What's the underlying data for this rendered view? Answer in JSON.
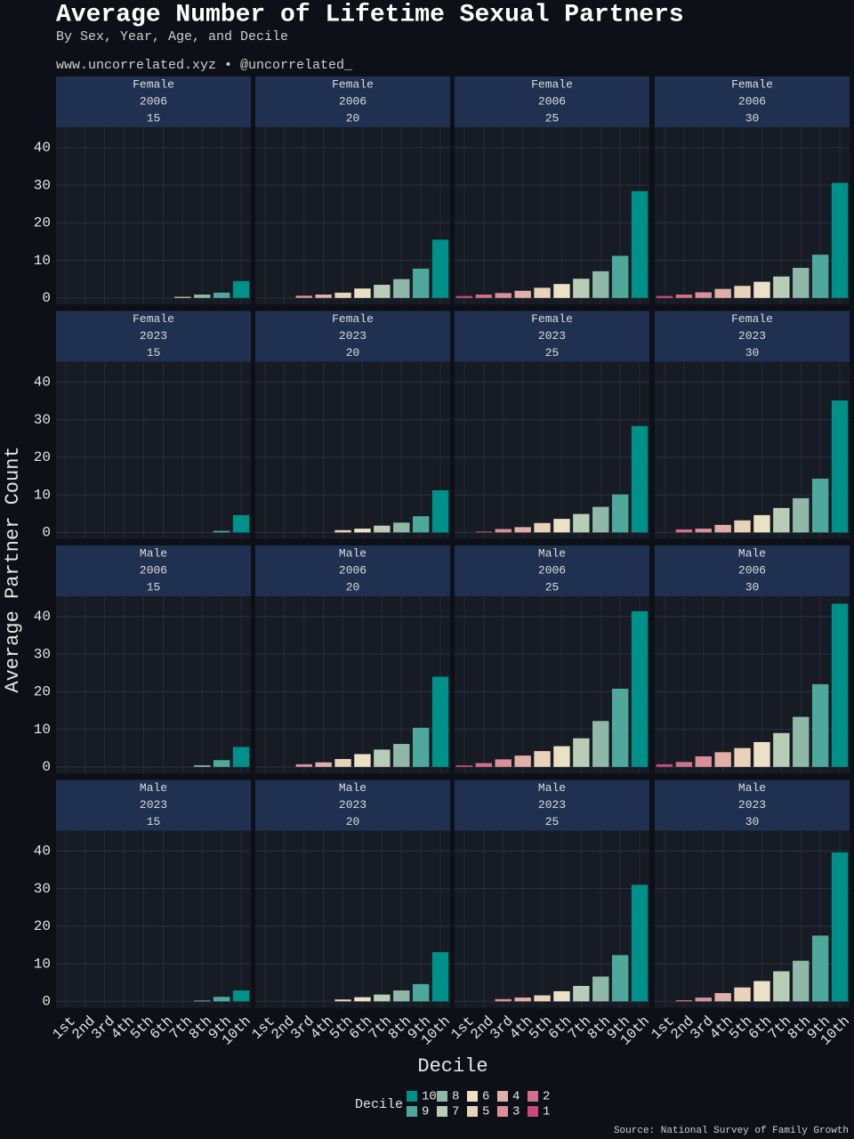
{
  "title": "Average Number of Lifetime Sexual Partners",
  "subtitle": "By Sex, Year, Age, and Decile",
  "credit": "www.uncorrelated.xyz • @uncorrelated_",
  "source": "Source: National Survey of Family Growth",
  "y_label": "Average Partner Count",
  "x_label": "Decile",
  "categories": [
    "1st",
    "2nd",
    "3rd",
    "4th",
    "5th",
    "6th",
    "7th",
    "8th",
    "9th",
    "10th"
  ],
  "colors": [
    "#c94a78",
    "#d0708a",
    "#d9909b",
    "#e0b0a8",
    "#e8d2b8",
    "#ebe2c6",
    "#b8cdb5",
    "#8fb8a8",
    "#4fa89c",
    "#00908a"
  ],
  "legend": {
    "title": "Decile",
    "names": [
      "1",
      "2",
      "3",
      "4",
      "5",
      "6",
      "7",
      "8",
      "9",
      "10"
    ]
  },
  "ylim": [
    -1.7,
    45.4
  ],
  "yticks": [
    0,
    10,
    20,
    30,
    40
  ],
  "grid": true,
  "chart_data": [
    {
      "type": "bar",
      "sex": "Female",
      "year": "2006",
      "age": "15",
      "values": [
        0,
        0,
        0,
        0,
        0,
        0,
        0.3,
        0.9,
        1.4,
        4.5
      ]
    },
    {
      "type": "bar",
      "sex": "Female",
      "year": "2006",
      "age": "20",
      "values": [
        0,
        0,
        0.6,
        0.9,
        1.4,
        2.5,
        3.5,
        5.0,
        7.8,
        15.5
      ]
    },
    {
      "type": "bar",
      "sex": "Female",
      "year": "2006",
      "age": "25",
      "values": [
        0.5,
        0.9,
        1.3,
        1.9,
        2.7,
        3.7,
        5.1,
        7.1,
        11.2,
        28.4
      ]
    },
    {
      "type": "bar",
      "sex": "Female",
      "year": "2006",
      "age": "30",
      "values": [
        0.5,
        0.9,
        1.5,
        2.4,
        3.2,
        4.3,
        5.7,
        8.0,
        11.5,
        30.6
      ]
    },
    {
      "type": "bar",
      "sex": "Female",
      "year": "2023",
      "age": "15",
      "values": [
        0,
        0,
        0,
        0,
        0,
        0,
        0,
        0,
        0.4,
        4.6
      ]
    },
    {
      "type": "bar",
      "sex": "Female",
      "year": "2023",
      "age": "20",
      "values": [
        0,
        0,
        0,
        0,
        0.6,
        1.0,
        1.8,
        2.6,
        4.3,
        11.2
      ]
    },
    {
      "type": "bar",
      "sex": "Female",
      "year": "2023",
      "age": "25",
      "values": [
        0,
        0.2,
        0.9,
        1.4,
        2.5,
        3.6,
        4.9,
        6.8,
        10.1,
        28.3
      ]
    },
    {
      "type": "bar",
      "sex": "Female",
      "year": "2023",
      "age": "30",
      "values": [
        0,
        0.8,
        1.0,
        2.0,
        3.2,
        4.6,
        6.5,
        9.1,
        14.3,
        35.1
      ]
    },
    {
      "type": "bar",
      "sex": "Male",
      "year": "2006",
      "age": "15",
      "values": [
        0,
        0,
        0,
        0,
        0,
        0,
        0,
        0.4,
        1.8,
        5.3
      ]
    },
    {
      "type": "bar",
      "sex": "Male",
      "year": "2006",
      "age": "20",
      "values": [
        0,
        0,
        0.7,
        1.2,
        2.1,
        3.4,
        4.6,
        6.1,
        10.4,
        24.0
      ]
    },
    {
      "type": "bar",
      "sex": "Male",
      "year": "2006",
      "age": "25",
      "values": [
        0.4,
        1.0,
        2.0,
        3.0,
        4.2,
        5.5,
        7.6,
        12.2,
        20.8,
        41.4
      ]
    },
    {
      "type": "bar",
      "sex": "Male",
      "year": "2006",
      "age": "30",
      "values": [
        0.7,
        1.3,
        2.8,
        3.9,
        5.0,
        6.6,
        9.0,
        13.3,
        22.0,
        43.4
      ]
    },
    {
      "type": "bar",
      "sex": "Male",
      "year": "2023",
      "age": "15",
      "values": [
        0,
        0,
        0,
        0,
        0,
        0,
        0,
        0.2,
        1.2,
        2.9
      ]
    },
    {
      "type": "bar",
      "sex": "Male",
      "year": "2023",
      "age": "20",
      "values": [
        0,
        0,
        0,
        0,
        0.5,
        1.1,
        1.8,
        2.9,
        4.6,
        13.1
      ]
    },
    {
      "type": "bar",
      "sex": "Male",
      "year": "2023",
      "age": "25",
      "values": [
        0,
        0,
        0.6,
        1.0,
        1.6,
        2.7,
        4.1,
        6.6,
        12.3,
        31.0
      ]
    },
    {
      "type": "bar",
      "sex": "Male",
      "year": "2023",
      "age": "30",
      "values": [
        0,
        0.3,
        1.0,
        2.2,
        3.7,
        5.4,
        8.0,
        10.8,
        17.5,
        39.6
      ]
    }
  ]
}
